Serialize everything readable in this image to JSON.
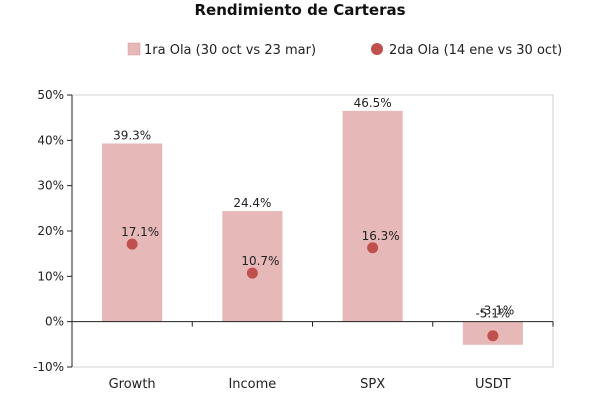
{
  "chart_data": {
    "type": "bar",
    "title": "Rendimiento de Carteras",
    "categories": [
      "Growth",
      "Income",
      "SPX",
      "USDT"
    ],
    "series": [
      {
        "name": "1ra Ola (30 oct vs 23 mar)",
        "mark": "bar",
        "color": "#e6b8b7",
        "values": [
          39.3,
          24.4,
          46.5,
          -5.1
        ],
        "labels": [
          "39.3%",
          "24.4%",
          "46.5%",
          "-5.1%"
        ]
      },
      {
        "name": "2da Ola (14 ene vs 30 oct)",
        "mark": "point",
        "color": "#c0504d",
        "values": [
          17.1,
          10.7,
          16.3,
          -3.1
        ],
        "labels": [
          "17.1%",
          "10.7%",
          "16.3%",
          "-3.1%"
        ]
      }
    ],
    "ylim": [
      -10,
      50
    ],
    "yticks": [
      -10,
      0,
      10,
      20,
      30,
      40,
      50
    ],
    "ytick_labels": [
      "-10%",
      "0%",
      "10%",
      "20%",
      "30%",
      "40%",
      "50%"
    ],
    "xlabel": "",
    "ylabel": "",
    "legend_position": "top",
    "grid": false
  }
}
